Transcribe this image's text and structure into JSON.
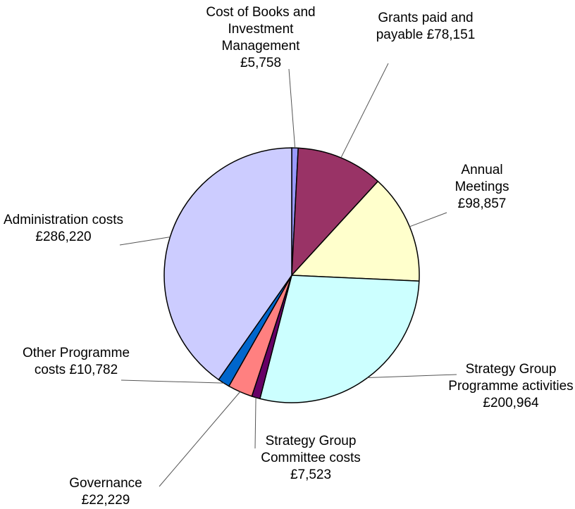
{
  "chart_data": {
    "type": "pie",
    "categories": [
      "Cost of Books and Investment Management",
      "Grants paid and payable",
      "Annual Meetings",
      "Strategy Group Programme activities",
      "Strategy Group Committee costs",
      "Governance",
      "Other Programme costs",
      "Administration costs"
    ],
    "values": [
      5758,
      78151,
      98857,
      200964,
      7523,
      22229,
      10782,
      286220
    ],
    "value_labels": [
      "£5,758",
      "£78,151",
      "£98,857",
      "£200,964",
      "£7,523",
      "£22,229",
      "£10,782",
      "£286,220"
    ],
    "colors": [
      "#9999ff",
      "#993366",
      "#ffffcc",
      "#ccffff",
      "#660066",
      "#ff8080",
      "#0066cc",
      "#ccccff"
    ]
  }
}
